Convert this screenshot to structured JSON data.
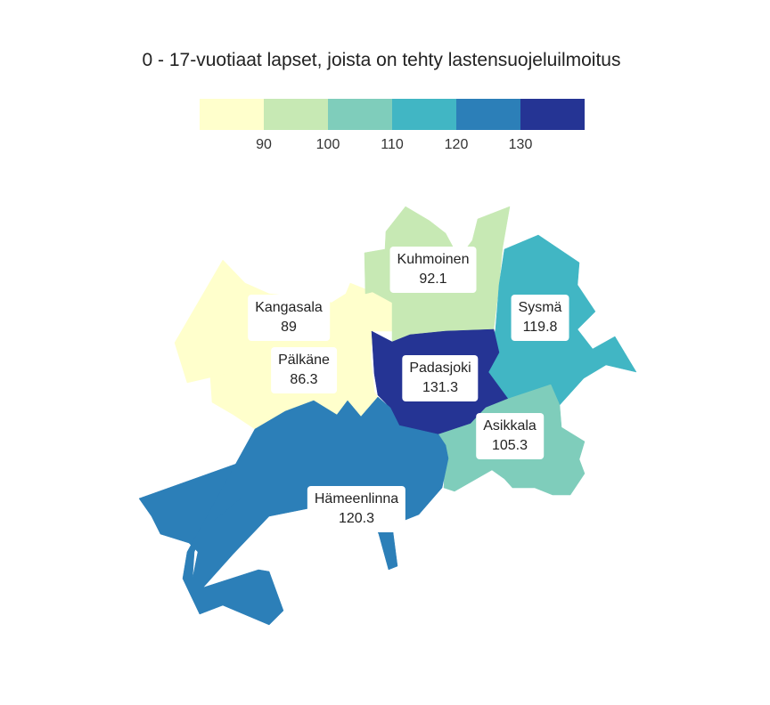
{
  "title": "0 - 17-vuotiaat lapset, joista on tehty lastensuojeluilmoitus",
  "legend": {
    "colors": [
      "#ffffcc",
      "#c7e9b4",
      "#7fcdbb",
      "#41b6c4",
      "#2c7fb8",
      "#253494"
    ],
    "ticks": [
      "90",
      "100",
      "110",
      "120",
      "130"
    ]
  },
  "regions": [
    {
      "name": "Kangasala",
      "value": "89",
      "color": "#ffffcc"
    },
    {
      "name": "Pälkäne",
      "value": "86.3",
      "color": "#ffffcc"
    },
    {
      "name": "Kuhmoinen",
      "value": "92.1",
      "color": "#c7e9b4"
    },
    {
      "name": "Sysmä",
      "value": "119.8",
      "color": "#41b6c4"
    },
    {
      "name": "Padasjoki",
      "value": "131.3",
      "color": "#253494"
    },
    {
      "name": "Asikkala",
      "value": "105.3",
      "color": "#7fcdbb"
    },
    {
      "name": "Hämeenlinna",
      "value": "120.3",
      "color": "#2c7fb8"
    }
  ]
}
